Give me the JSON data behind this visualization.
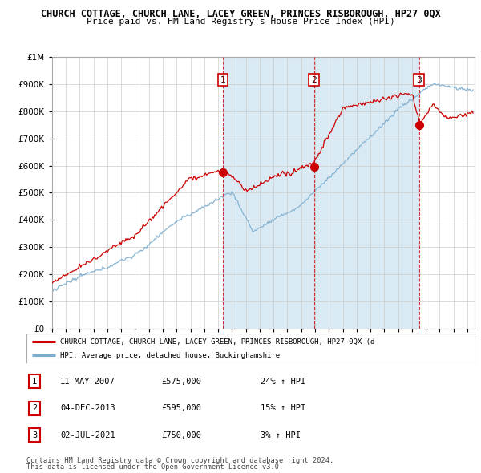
{
  "title": "CHURCH COTTAGE, CHURCH LANE, LACEY GREEN, PRINCES RISBOROUGH, HP27 0QX",
  "subtitle": "Price paid vs. HM Land Registry's House Price Index (HPI)",
  "property_label": "CHURCH COTTAGE, CHURCH LANE, LACEY GREEN, PRINCES RISBOROUGH, HP27 0QX (d",
  "hpi_label": "HPI: Average price, detached house, Buckinghamshire",
  "property_color": "#cc0000",
  "hpi_color": "#7aadcf",
  "shade_color": "#daeaf5",
  "vline_color": "#cc0000",
  "ylim": [
    0,
    1000000
  ],
  "yticks": [
    0,
    100000,
    200000,
    300000,
    400000,
    500000,
    600000,
    700000,
    800000,
    900000,
    1000000
  ],
  "sale1_x": 2007.36,
  "sale1_price": 575000,
  "sale2_x": 2013.92,
  "sale2_price": 595000,
  "sale3_x": 2021.5,
  "sale3_price": 750000,
  "footer1": "Contains HM Land Registry data © Crown copyright and database right 2024.",
  "footer2": "This data is licensed under the Open Government Licence v3.0.",
  "table_rows": [
    {
      "num": "1",
      "date": "11-MAY-2007",
      "price": "£575,000",
      "hpi": "24% ↑ HPI"
    },
    {
      "num": "2",
      "date": "04-DEC-2013",
      "price": "£595,000",
      "hpi": "15% ↑ HPI"
    },
    {
      "num": "3",
      "date": "02-JUL-2021",
      "price": "£750,000",
      "hpi": "3% ↑ HPI"
    }
  ]
}
